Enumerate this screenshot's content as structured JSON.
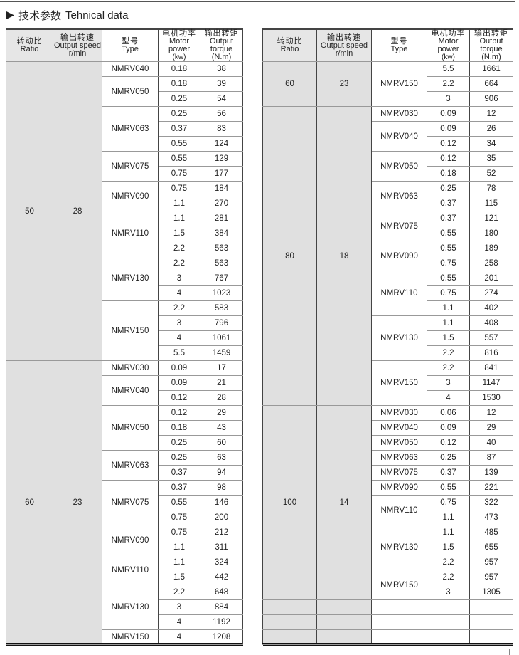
{
  "title": {
    "cn": "技术参数",
    "en": "Tehnical data",
    "icon": "play-triangle-icon"
  },
  "headers": [
    {
      "cn": "转动比",
      "en": "Ratio"
    },
    {
      "cn": "输出转速",
      "en": "Output speed",
      "unit": "r/min"
    },
    {
      "cn": "型号",
      "en": "Type"
    },
    {
      "cn": "电机功率",
      "en": "Motor power",
      "unit": "(kw)"
    },
    {
      "cn": "输出转矩",
      "en": "Output torque",
      "unit": "(N.m)"
    }
  ],
  "colors": {
    "grey_fill": "#e0e0e0",
    "border": "#444444"
  },
  "tables": [
    {
      "groups": [
        {
          "ratio": "50",
          "speed": "28",
          "types": [
            {
              "type": "NMRV040",
              "rows": [
                [
                  "0.18",
                  "38"
                ]
              ]
            },
            {
              "type": "NMRV050",
              "rows": [
                [
                  "0.18",
                  "39"
                ],
                [
                  "0.25",
                  "54"
                ]
              ]
            },
            {
              "type": "NMRV063",
              "rows": [
                [
                  "0.25",
                  "56"
                ],
                [
                  "0.37",
                  "83"
                ],
                [
                  "0.55",
                  "124"
                ]
              ]
            },
            {
              "type": "NMRV075",
              "rows": [
                [
                  "0.55",
                  "129"
                ],
                [
                  "0.75",
                  "177"
                ]
              ]
            },
            {
              "type": "NMRV090",
              "rows": [
                [
                  "0.75",
                  "184"
                ],
                [
                  "1.1",
                  "270"
                ]
              ]
            },
            {
              "type": "NMRV110",
              "rows": [
                [
                  "1.1",
                  "281"
                ],
                [
                  "1.5",
                  "384"
                ],
                [
                  "2.2",
                  "563"
                ]
              ]
            },
            {
              "type": "NMRV130",
              "rows": [
                [
                  "2.2",
                  "563"
                ],
                [
                  "3",
                  "767"
                ],
                [
                  "4",
                  "1023"
                ]
              ]
            },
            {
              "type": "NMRV150",
              "rows": [
                [
                  "2.2",
                  "583"
                ],
                [
                  "3",
                  "796"
                ],
                [
                  "4",
                  "1061"
                ],
                [
                  "5.5",
                  "1459"
                ]
              ]
            }
          ]
        },
        {
          "ratio": "60",
          "speed": "23",
          "types": [
            {
              "type": "NMRV030",
              "rows": [
                [
                  "0.09",
                  "17"
                ]
              ]
            },
            {
              "type": "NMRV040",
              "rows": [
                [
                  "0.09",
                  "21"
                ],
                [
                  "0.12",
                  "28"
                ]
              ]
            },
            {
              "type": "NMRV050",
              "rows": [
                [
                  "0.12",
                  "29"
                ],
                [
                  "0.18",
                  "43"
                ],
                [
                  "0.25",
                  "60"
                ]
              ]
            },
            {
              "type": "NMRV063",
              "rows": [
                [
                  "0.25",
                  "63"
                ],
                [
                  "0.37",
                  "94"
                ]
              ]
            },
            {
              "type": "NMRV075",
              "rows": [
                [
                  "0.37",
                  "98"
                ],
                [
                  "0.55",
                  "146"
                ],
                [
                  "0.75",
                  "200"
                ]
              ]
            },
            {
              "type": "NMRV090",
              "rows": [
                [
                  "0.75",
                  "212"
                ],
                [
                  "1.1",
                  "311"
                ]
              ]
            },
            {
              "type": "NMRV110",
              "rows": [
                [
                  "1.1",
                  "324"
                ],
                [
                  "1.5",
                  "442"
                ]
              ]
            },
            {
              "type": "NMRV130",
              "rows": [
                [
                  "2.2",
                  "648"
                ],
                [
                  "3",
                  "884"
                ],
                [
                  "4",
                  "1192"
                ]
              ]
            },
            {
              "type": "NMRV150",
              "rows": [
                [
                  "4",
                  "1208"
                ]
              ]
            }
          ]
        }
      ],
      "empty_rows": 0
    },
    {
      "groups": [
        {
          "ratio": "60",
          "speed": "23",
          "types": [
            {
              "type": "NMRV150",
              "rows": [
                [
                  "5.5",
                  "1661"
                ],
                [
                  "2.2",
                  "664"
                ],
                [
                  "3",
                  "906"
                ]
              ]
            }
          ]
        },
        {
          "ratio": "80",
          "speed": "18",
          "types": [
            {
              "type": "NMRV030",
              "rows": [
                [
                  "0.09",
                  "12"
                ]
              ]
            },
            {
              "type": "NMRV040",
              "rows": [
                [
                  "0.09",
                  "26"
                ],
                [
                  "0.12",
                  "34"
                ]
              ]
            },
            {
              "type": "NMRV050",
              "rows": [
                [
                  "0.12",
                  "35"
                ],
                [
                  "0.18",
                  "52"
                ]
              ]
            },
            {
              "type": "NMRV063",
              "rows": [
                [
                  "0.25",
                  "78"
                ],
                [
                  "0.37",
                  "115"
                ]
              ]
            },
            {
              "type": "NMRV075",
              "rows": [
                [
                  "0.37",
                  "121"
                ],
                [
                  "0.55",
                  "180"
                ]
              ]
            },
            {
              "type": "NMRV090",
              "rows": [
                [
                  "0.55",
                  "189"
                ],
                [
                  "0.75",
                  "258"
                ]
              ]
            },
            {
              "type": "NMRV110",
              "rows": [
                [
                  "0.55",
                  "201"
                ],
                [
                  "0.75",
                  "274"
                ],
                [
                  "1.1",
                  "402"
                ]
              ]
            },
            {
              "type": "NMRV130",
              "rows": [
                [
                  "1.1",
                  "408"
                ],
                [
                  "1.5",
                  "557"
                ],
                [
                  "2.2",
                  "816"
                ]
              ]
            },
            {
              "type": "NMRV150",
              "rows": [
                [
                  "2.2",
                  "841"
                ],
                [
                  "3",
                  "1147"
                ],
                [
                  "4",
                  "1530"
                ]
              ]
            }
          ]
        },
        {
          "ratio": "100",
          "speed": "14",
          "types": [
            {
              "type": "NMRV030",
              "rows": [
                [
                  "0.06",
                  "12"
                ]
              ]
            },
            {
              "type": "NMRV040",
              "rows": [
                [
                  "0.09",
                  "29"
                ]
              ]
            },
            {
              "type": "NMRV050",
              "rows": [
                [
                  "0.12",
                  "40"
                ]
              ]
            },
            {
              "type": "NMRV063",
              "rows": [
                [
                  "0.25",
                  "87"
                ]
              ]
            },
            {
              "type": "NMRV075",
              "rows": [
                [
                  "0.37",
                  "139"
                ]
              ]
            },
            {
              "type": "NMRV090",
              "rows": [
                [
                  "0.55",
                  "221"
                ]
              ]
            },
            {
              "type": "NMRV110",
              "rows": [
                [
                  "0.75",
                  "322"
                ],
                [
                  "1.1",
                  "473"
                ]
              ]
            },
            {
              "type": "NMRV130",
              "rows": [
                [
                  "1.1",
                  "485"
                ],
                [
                  "1.5",
                  "655"
                ],
                [
                  "2.2",
                  "957"
                ]
              ]
            },
            {
              "type": "NMRV150",
              "rows": [
                [
                  "2.2",
                  "957"
                ],
                [
                  "3",
                  "1305"
                ]
              ]
            }
          ]
        }
      ],
      "empty_rows": 3
    }
  ]
}
